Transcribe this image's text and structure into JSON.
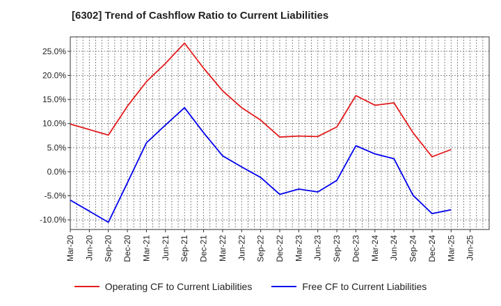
{
  "title": "[6302]  Trend of Cashflow Ratio to Current Liabilities",
  "chart_data": {
    "type": "line",
    "title": "[6302]  Trend of Cashflow Ratio to Current Liabilities",
    "xlabel": "",
    "ylabel": "",
    "x_tick_labels": [
      "Mar-20",
      "Jun-20",
      "Sep-20",
      "Dec-20",
      "Mar-21",
      "Jun-21",
      "Sep-21",
      "Dec-21",
      "Mar-22",
      "Jun-22",
      "Sep-22",
      "Dec-22",
      "Mar-23",
      "Jun-23",
      "Sep-23",
      "Dec-23",
      "Mar-24",
      "Jun-24",
      "Sep-24",
      "Dec-24",
      "Mar-25",
      "Jun-25"
    ],
    "y_tick_labels": [
      "25.0%",
      "20.0%",
      "15.0%",
      "10.0%",
      "5.0%",
      "0.0%",
      "-5.0%",
      "-10.0%"
    ],
    "y_ticks": [
      25,
      20,
      15,
      10,
      5,
      0,
      -5,
      -10
    ],
    "ylim": [
      -12,
      28
    ],
    "grid": true,
    "legend_position": "bottom",
    "x_points": [
      "Mar-20",
      "Sep-20",
      "Dec-20",
      "Mar-21",
      "Jun-21",
      "Sep-21",
      "Dec-21",
      "Mar-22",
      "Jun-22",
      "Sep-22",
      "Dec-22",
      "Mar-23",
      "Jun-23",
      "Sep-23",
      "Dec-23",
      "Mar-24",
      "Jun-24",
      "Sep-24",
      "Dec-24",
      "Mar-25"
    ],
    "series": [
      {
        "name": "Operating CF to Current Liabilities",
        "color": "#e31a1c",
        "values": [
          9.9,
          7.6,
          13.6,
          18.7,
          22.5,
          26.7,
          21.5,
          16.8,
          13.3,
          10.7,
          7.2,
          7.4,
          7.3,
          9.3,
          15.8,
          13.8,
          14.3,
          8.1,
          3.1,
          4.6
        ]
      },
      {
        "name": "Free CF to Current Liabilities",
        "color": "#0000ee",
        "values": [
          -5.9,
          -10.5,
          -2.3,
          6.0,
          9.7,
          13.3,
          8.1,
          3.3,
          1.0,
          -1.2,
          -4.7,
          -3.6,
          -4.2,
          -1.8,
          5.4,
          3.7,
          2.7,
          -4.9,
          -8.7,
          -7.9
        ]
      }
    ]
  }
}
